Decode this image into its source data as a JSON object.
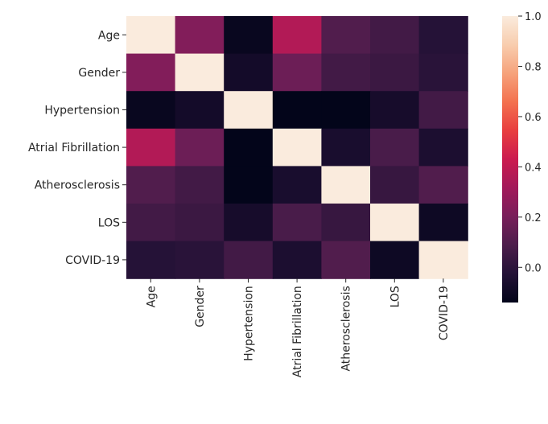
{
  "chart_data": {
    "type": "heatmap",
    "title": "",
    "xlabel": "",
    "ylabel": "",
    "labels": [
      "Age",
      "Gender",
      "Hypertension",
      "Atrial Fibrillation",
      "Atherosclerosis",
      "LOS",
      "COVID-19"
    ],
    "matrix": [
      [
        1.0,
        0.23,
        -0.12,
        0.36,
        0.1,
        0.06,
        -0.02
      ],
      [
        0.23,
        1.0,
        -0.08,
        0.17,
        0.06,
        0.04,
        -0.01
      ],
      [
        -0.12,
        -0.08,
        1.0,
        -0.14,
        -0.14,
        -0.07,
        0.06
      ],
      [
        0.36,
        0.17,
        -0.14,
        1.0,
        -0.06,
        0.08,
        -0.05
      ],
      [
        0.1,
        0.06,
        -0.14,
        -0.06,
        1.0,
        0.03,
        0.1
      ],
      [
        0.06,
        0.04,
        -0.07,
        0.08,
        0.03,
        1.0,
        -0.1
      ],
      [
        -0.02,
        -0.01,
        0.06,
        -0.05,
        0.1,
        -0.1,
        1.0
      ]
    ],
    "colorbar": {
      "vmin": -0.14,
      "vmax": 1.0,
      "ticks": [
        0.0,
        0.2,
        0.4,
        0.6,
        0.8,
        1.0
      ],
      "tick_labels": [
        "0.0",
        "0.2",
        "0.4",
        "0.6",
        "0.8",
        "1.0"
      ],
      "placement": "right"
    },
    "colormap": "rocket",
    "grid": false
  }
}
